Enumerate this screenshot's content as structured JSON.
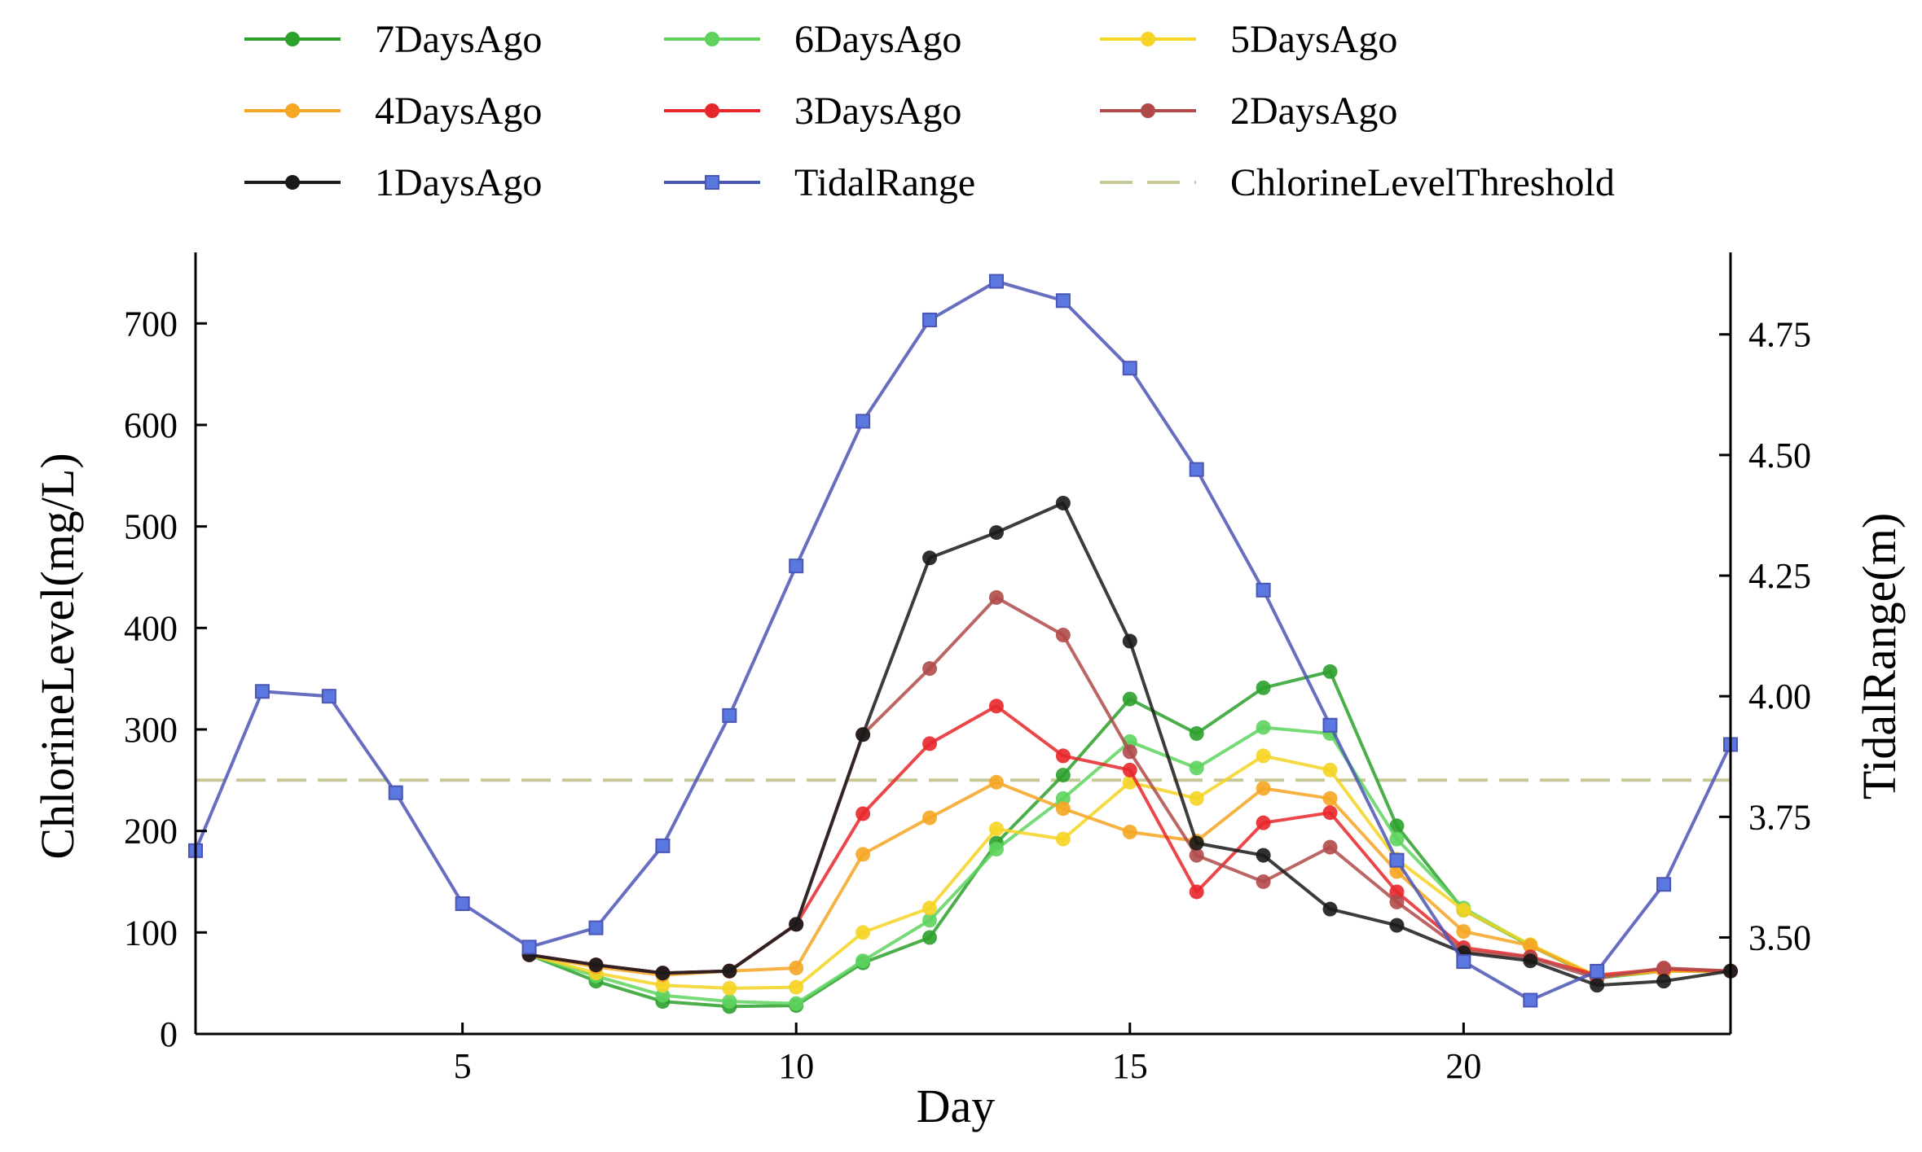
{
  "chart_data": {
    "type": "line",
    "title": "",
    "xlabel": "Day",
    "ylabel": "ChlorineLevel(mg/L)",
    "y2label": "TidalRange(m)",
    "xlim": [
      1,
      24
    ],
    "ylim": [
      0,
      770
    ],
    "y2lim": [
      3.3,
      4.92
    ],
    "x_ticks": [
      5,
      10,
      15,
      20
    ],
    "y_ticks": [
      0,
      100,
      200,
      300,
      400,
      500,
      600,
      700
    ],
    "y2_ticks": [
      3.5,
      3.75,
      4.0,
      4.25,
      4.5,
      4.75
    ],
    "y2_tick_labels": [
      "3.50",
      "3.75",
      "4.00",
      "4.25",
      "4.50",
      "4.75"
    ],
    "grid": false,
    "legend_position": "top",
    "threshold": {
      "name": "ChlorineLevelThreshold",
      "value": 250,
      "color": "#c8c896"
    },
    "series": [
      {
        "name": "7DaysAgo",
        "color": "#2ca02c",
        "marker": "circle",
        "axis": "left",
        "x": [
          6,
          7,
          8,
          9,
          10,
          11,
          12,
          13,
          14,
          15,
          16,
          17,
          18,
          19,
          20,
          21,
          22,
          23,
          24
        ],
        "values": [
          78,
          52,
          32,
          27,
          28,
          70,
          95,
          188,
          255,
          330,
          296,
          341,
          357,
          205,
          122,
          87,
          55,
          62,
          62
        ]
      },
      {
        "name": "6DaysAgo",
        "color": "#5ed35e",
        "marker": "circle",
        "axis": "left",
        "x": [
          6,
          7,
          8,
          9,
          10,
          11,
          12,
          13,
          14,
          15,
          16,
          17,
          18,
          19,
          20,
          21,
          22,
          23,
          24
        ],
        "values": [
          78,
          57,
          38,
          32,
          30,
          72,
          112,
          182,
          232,
          288,
          262,
          302,
          296,
          192,
          124,
          87,
          55,
          62,
          62
        ]
      },
      {
        "name": "5DaysAgo",
        "color": "#f5d423",
        "marker": "circle",
        "axis": "left",
        "x": [
          6,
          7,
          8,
          9,
          10,
          11,
          12,
          13,
          14,
          15,
          16,
          17,
          18,
          19,
          20,
          21,
          22,
          23,
          24
        ],
        "values": [
          78,
          60,
          48,
          45,
          46,
          100,
          124,
          202,
          192,
          248,
          232,
          274,
          260,
          172,
          122,
          88,
          57,
          62,
          62
        ]
      },
      {
        "name": "4DaysAgo",
        "color": "#f5a623",
        "marker": "circle",
        "axis": "left",
        "x": [
          6,
          7,
          8,
          9,
          10,
          11,
          12,
          13,
          14,
          15,
          16,
          17,
          18,
          19,
          20,
          21,
          22,
          23,
          24
        ],
        "values": [
          78,
          66,
          58,
          62,
          65,
          177,
          213,
          248,
          222,
          199,
          190,
          242,
          232,
          160,
          101,
          87,
          56,
          62,
          62
        ]
      },
      {
        "name": "3DaysAgo",
        "color": "#e8262a",
        "marker": "circle",
        "axis": "left",
        "x": [
          6,
          7,
          8,
          9,
          10,
          11,
          12,
          13,
          14,
          15,
          16,
          17,
          18,
          19,
          20,
          21,
          22,
          23,
          24
        ],
        "values": [
          78,
          68,
          60,
          62,
          108,
          217,
          286,
          323,
          274,
          260,
          140,
          208,
          218,
          140,
          85,
          76,
          58,
          64,
          62
        ]
      },
      {
        "name": "2DaysAgo",
        "color": "#b04a4a",
        "marker": "circle",
        "axis": "left",
        "x": [
          6,
          7,
          8,
          9,
          10,
          11,
          12,
          13,
          14,
          15,
          16,
          17,
          18,
          19,
          20,
          21,
          22,
          23,
          24
        ],
        "values": [
          78,
          68,
          60,
          62,
          108,
          295,
          360,
          430,
          393,
          278,
          176,
          150,
          184,
          130,
          82,
          75,
          55,
          65,
          62
        ]
      },
      {
        "name": "1DaysAgo",
        "color": "#1a1a1a",
        "marker": "circle",
        "axis": "left",
        "x": [
          6,
          7,
          8,
          9,
          10,
          11,
          12,
          13,
          14,
          15,
          16,
          17,
          18,
          19,
          20,
          21,
          22,
          23,
          24
        ],
        "values": [
          78,
          68,
          60,
          62,
          108,
          295,
          469,
          494,
          523,
          387,
          188,
          176,
          123,
          107,
          80,
          72,
          48,
          52,
          62
        ]
      },
      {
        "name": "TidalRange",
        "color": "#4b55b4",
        "marker": "square",
        "axis": "right",
        "x": [
          1,
          2,
          3,
          4,
          5,
          6,
          7,
          8,
          9,
          10,
          11,
          12,
          13,
          14,
          15,
          16,
          17,
          18,
          19,
          20,
          21,
          22,
          23,
          24
        ],
        "values": [
          3.68,
          4.01,
          4.0,
          3.8,
          3.57,
          3.48,
          3.52,
          3.69,
          3.96,
          4.27,
          4.57,
          4.78,
          4.86,
          4.82,
          4.68,
          4.47,
          4.22,
          3.94,
          3.66,
          3.45,
          3.37,
          3.43,
          3.61,
          3.9
        ]
      }
    ]
  }
}
